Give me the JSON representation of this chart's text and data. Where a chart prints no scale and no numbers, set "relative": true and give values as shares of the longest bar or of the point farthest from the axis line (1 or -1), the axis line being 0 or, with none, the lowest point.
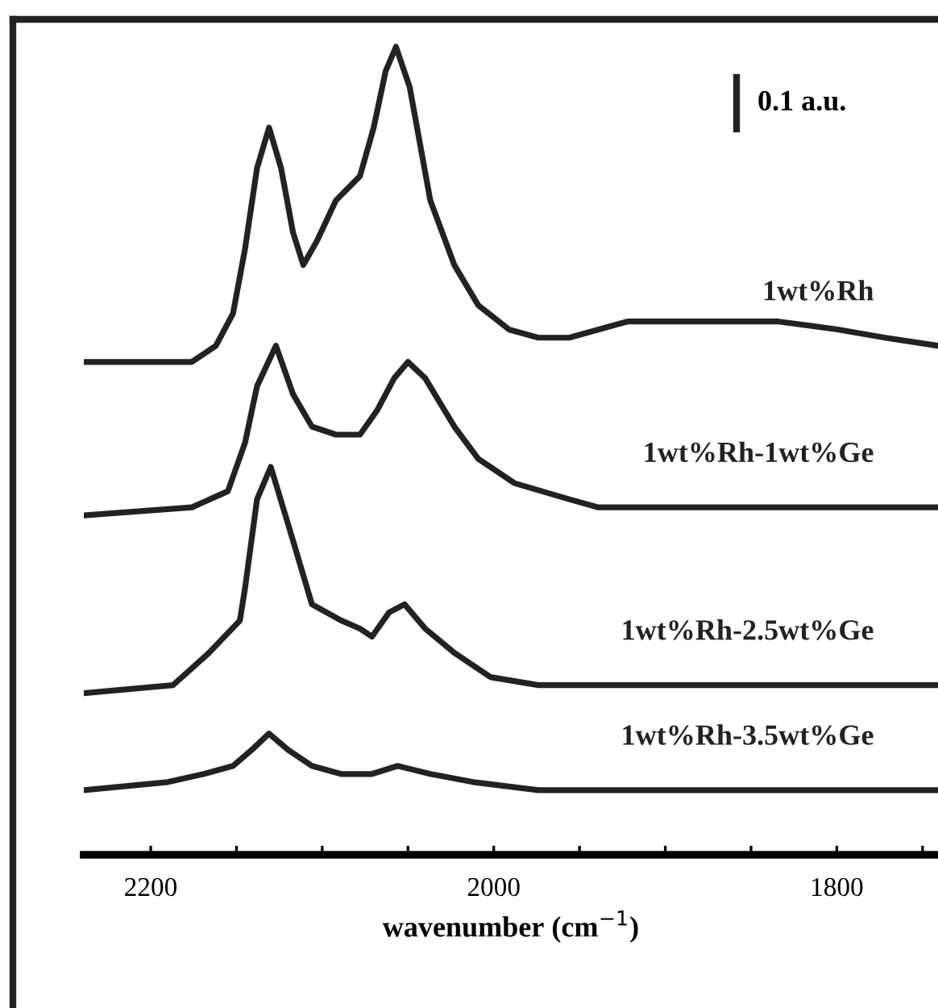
{
  "chart_data": {
    "type": "line",
    "relative": true,
    "xlabel": "wavenumber (cm$^{−1}$)",
    "annotations": [
      "0.1 a.u."
    ],
    "xlim": [
      2239,
      1741
    ],
    "xticks": [
      {
        "value": 2200,
        "label": "2200"
      },
      {
        "value": 2150,
        "label": null
      },
      {
        "value": 2100,
        "label": null
      },
      {
        "value": 2050,
        "label": null
      },
      {
        "value": 2000,
        "label": "2000"
      },
      {
        "value": 1950,
        "label": null
      },
      {
        "value": 1900,
        "label": null
      },
      {
        "value": 1850,
        "label": null
      },
      {
        "value": 1800,
        "label": "1800"
      },
      {
        "value": 1750,
        "label": null
      }
    ],
    "grid": false,
    "legend": false,
    "marker": "none",
    "line_style": "solid",
    "series": [
      {
        "name": "1wt%Rh",
        "color": "#222222",
        "x": [
          2239,
          2176,
          2162,
          2152,
          2145,
          2138,
          2131,
          2124,
          2117,
          2111,
          2103,
          2092,
          2078,
          2070,
          2063,
          2057,
          2049,
          2037,
          2023,
          2009,
          1991,
          1974,
          1956,
          1922,
          1880,
          1855,
          1834,
          1799,
          1772,
          1741
        ],
        "values": [
          0.61,
          0.61,
          0.63,
          0.67,
          0.75,
          0.85,
          0.9,
          0.85,
          0.77,
          0.73,
          0.76,
          0.81,
          0.84,
          0.9,
          0.97,
          1.0,
          0.95,
          0.81,
          0.73,
          0.68,
          0.65,
          0.64,
          0.64,
          0.66,
          0.66,
          0.66,
          0.66,
          0.65,
          0.64,
          0.63
        ]
      },
      {
        "name": "1wt%Rh-1wt%Ge",
        "color": "#222222",
        "x": [
          2239,
          2176,
          2155,
          2145,
          2138,
          2127,
          2117,
          2106,
          2092,
          2078,
          2068,
          2058,
          2050,
          2040,
          2023,
          2009,
          1988,
          1956,
          1939,
          1834,
          1741
        ],
        "values": [
          0.42,
          0.43,
          0.45,
          0.51,
          0.58,
          0.63,
          0.57,
          0.53,
          0.52,
          0.52,
          0.55,
          0.59,
          0.61,
          0.59,
          0.53,
          0.49,
          0.46,
          0.44,
          0.43,
          0.43,
          0.43
        ]
      },
      {
        "name": "1wt%Rh-2.5wt%Ge",
        "color": "#222222",
        "x": [
          2239,
          2187,
          2166,
          2148,
          2145,
          2138,
          2130,
          2120,
          2106,
          2089,
          2078,
          2071,
          2061,
          2052,
          2040,
          2023,
          2002,
          1974,
          1939,
          1869,
          1741
        ],
        "values": [
          0.2,
          0.21,
          0.25,
          0.29,
          0.33,
          0.44,
          0.48,
          0.41,
          0.31,
          0.29,
          0.28,
          0.27,
          0.3,
          0.31,
          0.28,
          0.25,
          0.22,
          0.21,
          0.21,
          0.21,
          0.21
        ]
      },
      {
        "name": "1wt%Rh-3.5wt%Ge",
        "color": "#222222",
        "x": [
          2239,
          2190,
          2169,
          2152,
          2141,
          2131,
          2120,
          2106,
          2089,
          2071,
          2056,
          2037,
          2012,
          1974,
          1904,
          1834,
          1741
        ],
        "values": [
          0.08,
          0.09,
          0.1,
          0.11,
          0.13,
          0.15,
          0.13,
          0.11,
          0.1,
          0.1,
          0.11,
          0.1,
          0.09,
          0.08,
          0.08,
          0.08,
          0.08
        ]
      }
    ]
  }
}
